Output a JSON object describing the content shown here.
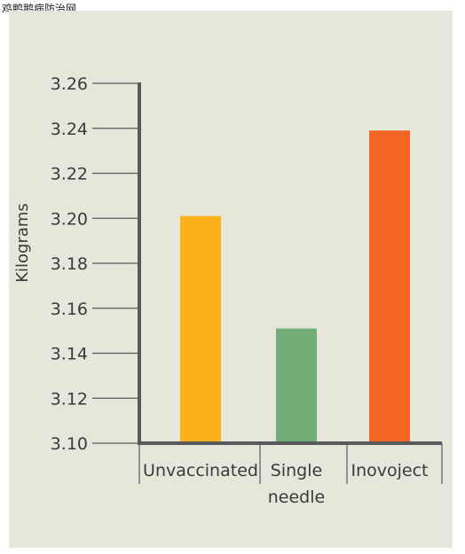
{
  "watermark": "鸡鸭鹅病防治网",
  "colors": {
    "panel_background": "#e6e7da",
    "axis": "#58595b",
    "text": "#3a3a3c"
  },
  "chart_data": {
    "type": "bar",
    "title": "",
    "xlabel": "",
    "ylabel": "Kilograms",
    "ylim": [
      3.1,
      3.26
    ],
    "yticks": [
      "3.10",
      "3.12",
      "3.14",
      "3.16",
      "3.18",
      "3.20",
      "3.22",
      "3.24",
      "3.26"
    ],
    "grid": false,
    "categories": [
      [
        "Unvaccinated"
      ],
      [
        "Single",
        "needle"
      ],
      [
        "Inovoject"
      ]
    ],
    "values": [
      3.201,
      3.151,
      3.239
    ],
    "bar_colors": [
      "#fcb01b",
      "#73ae78",
      "#f26522"
    ]
  }
}
